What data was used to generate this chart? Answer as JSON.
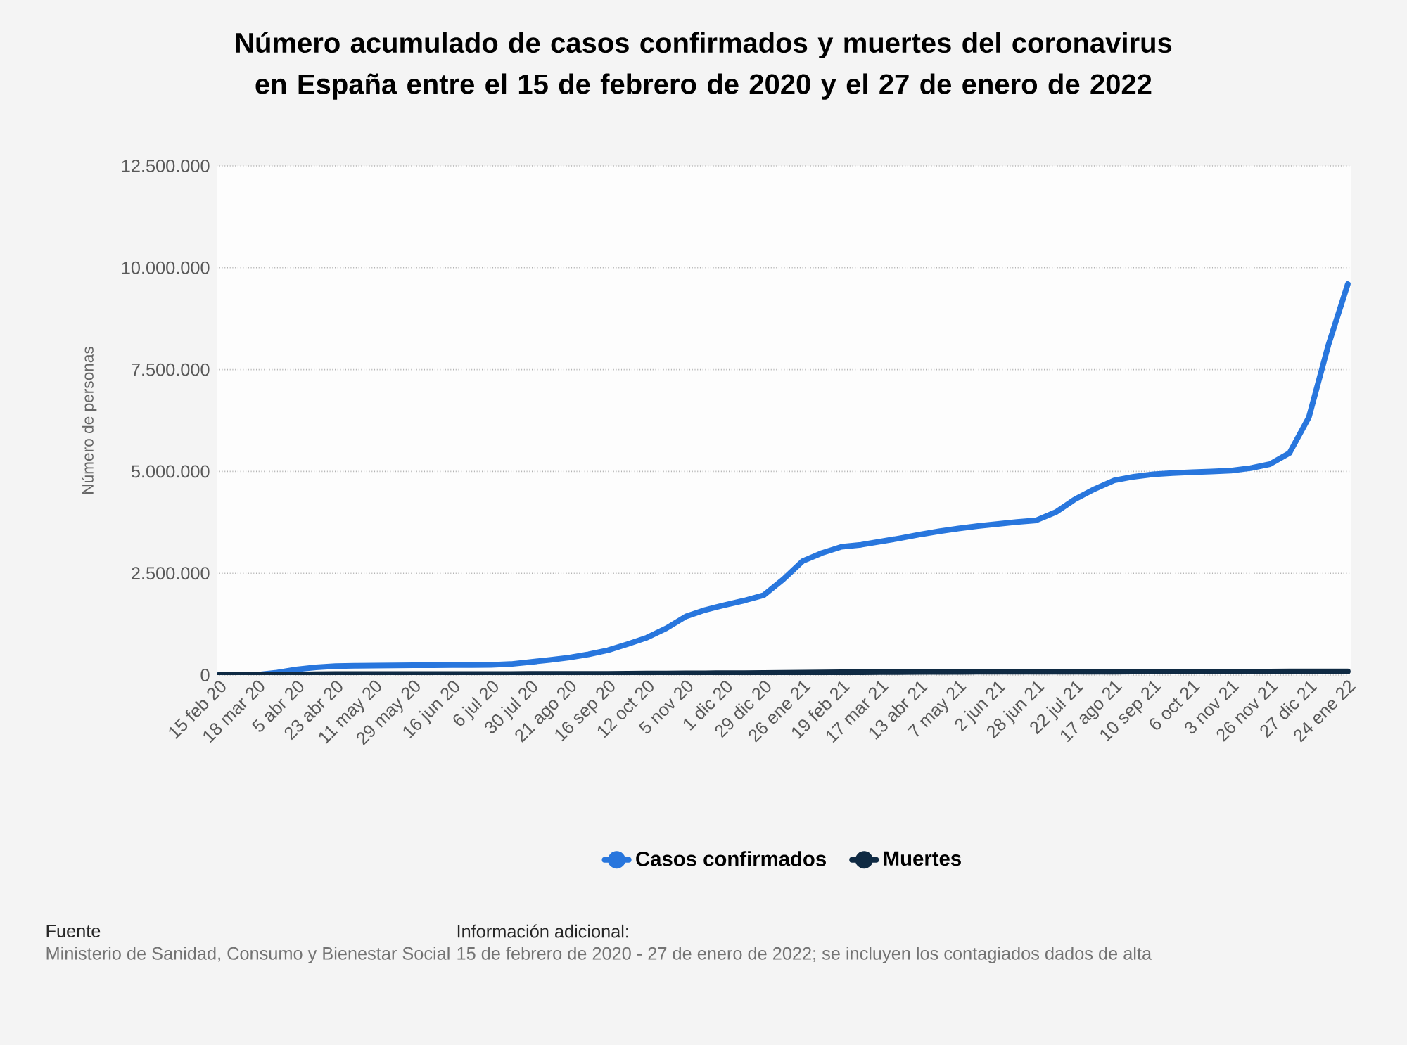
{
  "chart_data": {
    "type": "line",
    "title": "Número acumulado de casos confirmados y muertes del coronavirus en España entre el 15 de febrero de 2020 y el 27 de enero de 2022",
    "ylabel": "Número de personas",
    "categories": [
      "15 feb 20",
      null,
      "18 mar 20",
      null,
      "5 abr 20",
      null,
      "23 abr 20",
      null,
      "11 may 20",
      null,
      "29 may 20",
      null,
      "16 jun 20",
      null,
      "6 jul 20",
      null,
      "30 jul 20",
      null,
      "21 ago 20",
      null,
      "16 sep 20",
      null,
      "12 oct 20",
      null,
      "5 nov 20",
      null,
      "1 dic 20",
      null,
      "29 dic 20",
      null,
      "26 ene 21",
      null,
      "19 feb 21",
      null,
      "17 mar 21",
      null,
      "13 abr 21",
      null,
      "7 may 21",
      null,
      "2 jun 21",
      null,
      "28 jun 21",
      null,
      "22 jul 21",
      null,
      "17 ago 21",
      null,
      "10 sep 21",
      null,
      "6 oct 21",
      null,
      "3 nov 21",
      null,
      "26 nov 21",
      null,
      "27 dic 21",
      null,
      "24 ene 22"
    ],
    "series": [
      {
        "name": "Casos confirmados",
        "color": "#2876dd",
        "values": [
          0,
          0,
          10000,
          60000,
          140000,
          190000,
          220000,
          228000,
          232000,
          237000,
          240000,
          243000,
          245000,
          248000,
          252000,
          270000,
          320000,
          370000,
          430000,
          510000,
          610000,
          760000,
          920000,
          1150000,
          1440000,
          1600000,
          1720000,
          1830000,
          1960000,
          2350000,
          2800000,
          3000000,
          3150000,
          3200000,
          3280000,
          3360000,
          3450000,
          3530000,
          3600000,
          3660000,
          3710000,
          3760000,
          3800000,
          4000000,
          4320000,
          4570000,
          4780000,
          4870000,
          4930000,
          4960000,
          4980000,
          5000000,
          5020000,
          5080000,
          5180000,
          5450000,
          6330000,
          8100000,
          9600000
        ]
      },
      {
        "name": "Muertes",
        "color": "#0f2a43",
        "values": [
          0,
          0,
          1000,
          8000,
          15000,
          22000,
          25000,
          27000,
          27000,
          28000,
          28000,
          28000,
          28000,
          28000,
          28000,
          28000,
          29000,
          29000,
          30000,
          31000,
          32000,
          34000,
          37000,
          39000,
          42000,
          45000,
          47000,
          49000,
          51000,
          55000,
          59000,
          64000,
          67000,
          70000,
          73000,
          75000,
          77000,
          78000,
          79000,
          80000,
          80000,
          81000,
          81000,
          81000,
          82000,
          83000,
          84000,
          85000,
          86000,
          86000,
          87000,
          87000,
          87000,
          88000,
          88000,
          89000,
          90000,
          91000,
          92000
        ]
      }
    ],
    "ylim": [
      0,
      12500000
    ],
    "yticks": [
      {
        "value": 0,
        "label": "0"
      },
      {
        "value": 2500000,
        "label": "2.500.000"
      },
      {
        "value": 5000000,
        "label": "5.000.000"
      },
      {
        "value": 7500000,
        "label": "7.500.000"
      },
      {
        "value": 10000000,
        "label": "10.000.000"
      },
      {
        "value": 12500000,
        "label": "12.500.000"
      }
    ],
    "grid": "y",
    "legend": "bottom",
    "annotations": [
      "Fuente",
      "Ministerio de Sanidad, Consumo y Bienestar Social",
      "Información adicional:",
      "15 de febrero de 2020 - 27 de enero de 2022; se incluyen los contagiados dados de alta"
    ]
  }
}
